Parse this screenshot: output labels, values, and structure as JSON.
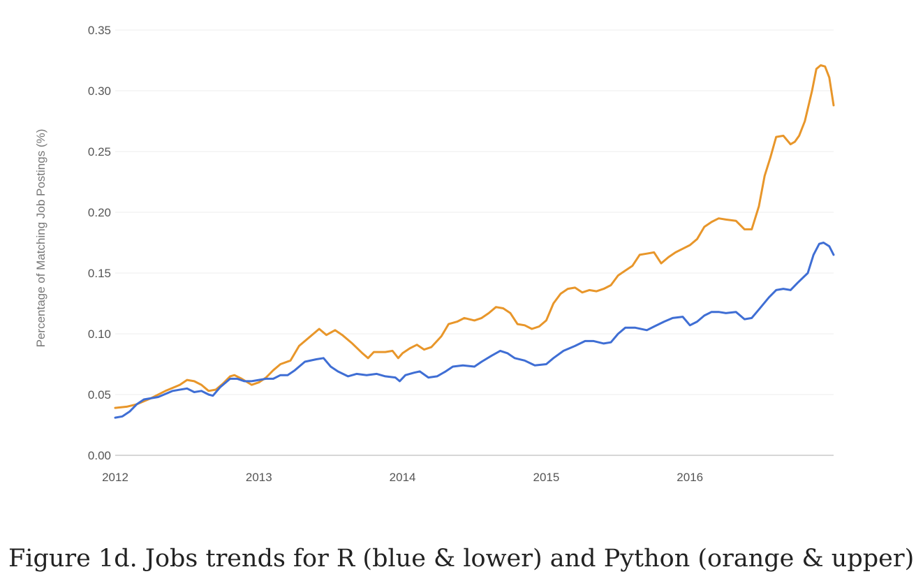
{
  "caption": "Figure 1d. Jobs trends for R (blue & lower) and Python (orange & upper).",
  "chart_data": {
    "type": "line",
    "title": "",
    "xlabel": "",
    "ylabel": "Percentage of Matching Job Postings (%)",
    "xlim": [
      2012.0,
      2017.0
    ],
    "ylim": [
      0,
      0.35
    ],
    "x_ticks": [
      {
        "value": 2012,
        "label": "2012"
      },
      {
        "value": 2013,
        "label": "2013"
      },
      {
        "value": 2014,
        "label": "2014"
      },
      {
        "value": 2015,
        "label": "2015"
      },
      {
        "value": 2016,
        "label": "2016"
      }
    ],
    "y_ticks": [
      {
        "value": 0.0,
        "label": "0.00"
      },
      {
        "value": 0.05,
        "label": "0.05"
      },
      {
        "value": 0.1,
        "label": "0.10"
      },
      {
        "value": 0.15,
        "label": "0.15"
      },
      {
        "value": 0.2,
        "label": "0.20"
      },
      {
        "value": 0.25,
        "label": "0.25"
      },
      {
        "value": 0.3,
        "label": "0.30"
      },
      {
        "value": 0.35,
        "label": "0.35"
      }
    ],
    "grid": true,
    "legend": "none",
    "series": [
      {
        "color": "#e8962a",
        "points": [
          [
            2012.0,
            0.039
          ],
          [
            2012.08,
            0.04
          ],
          [
            2012.15,
            0.042
          ],
          [
            2012.25,
            0.047
          ],
          [
            2012.35,
            0.053
          ],
          [
            2012.45,
            0.058
          ],
          [
            2012.5,
            0.062
          ],
          [
            2012.55,
            0.061
          ],
          [
            2012.6,
            0.058
          ],
          [
            2012.65,
            0.053
          ],
          [
            2012.7,
            0.054
          ],
          [
            2012.75,
            0.059
          ],
          [
            2012.8,
            0.065
          ],
          [
            2012.83,
            0.066
          ],
          [
            2012.88,
            0.063
          ],
          [
            2012.95,
            0.058
          ],
          [
            2013.0,
            0.06
          ],
          [
            2013.05,
            0.064
          ],
          [
            2013.1,
            0.07
          ],
          [
            2013.15,
            0.075
          ],
          [
            2013.22,
            0.078
          ],
          [
            2013.28,
            0.09
          ],
          [
            2013.35,
            0.097
          ],
          [
            2013.42,
            0.104
          ],
          [
            2013.47,
            0.099
          ],
          [
            2013.53,
            0.103
          ],
          [
            2013.58,
            0.099
          ],
          [
            2013.65,
            0.092
          ],
          [
            2013.72,
            0.084
          ],
          [
            2013.76,
            0.08
          ],
          [
            2013.8,
            0.085
          ],
          [
            2013.88,
            0.085
          ],
          [
            2013.93,
            0.086
          ],
          [
            2013.97,
            0.08
          ],
          [
            2014.0,
            0.084
          ],
          [
            2014.05,
            0.088
          ],
          [
            2014.1,
            0.091
          ],
          [
            2014.15,
            0.087
          ],
          [
            2014.2,
            0.089
          ],
          [
            2014.27,
            0.098
          ],
          [
            2014.32,
            0.108
          ],
          [
            2014.38,
            0.11
          ],
          [
            2014.43,
            0.113
          ],
          [
            2014.5,
            0.111
          ],
          [
            2014.55,
            0.113
          ],
          [
            2014.6,
            0.117
          ],
          [
            2014.65,
            0.122
          ],
          [
            2014.7,
            0.121
          ],
          [
            2014.75,
            0.117
          ],
          [
            2014.8,
            0.108
          ],
          [
            2014.85,
            0.107
          ],
          [
            2014.9,
            0.104
          ],
          [
            2014.95,
            0.106
          ],
          [
            2015.0,
            0.111
          ],
          [
            2015.05,
            0.125
          ],
          [
            2015.1,
            0.133
          ],
          [
            2015.15,
            0.137
          ],
          [
            2015.2,
            0.138
          ],
          [
            2015.25,
            0.134
          ],
          [
            2015.3,
            0.136
          ],
          [
            2015.35,
            0.135
          ],
          [
            2015.4,
            0.137
          ],
          [
            2015.45,
            0.14
          ],
          [
            2015.5,
            0.148
          ],
          [
            2015.55,
            0.152
          ],
          [
            2015.6,
            0.156
          ],
          [
            2015.65,
            0.165
          ],
          [
            2015.7,
            0.166
          ],
          [
            2015.75,
            0.167
          ],
          [
            2015.8,
            0.158
          ],
          [
            2015.85,
            0.163
          ],
          [
            2015.9,
            0.167
          ],
          [
            2015.95,
            0.17
          ],
          [
            2016.0,
            0.173
          ],
          [
            2016.05,
            0.178
          ],
          [
            2016.1,
            0.188
          ],
          [
            2016.15,
            0.192
          ],
          [
            2016.2,
            0.195
          ],
          [
            2016.25,
            0.194
          ],
          [
            2016.32,
            0.193
          ],
          [
            2016.38,
            0.186
          ],
          [
            2016.43,
            0.186
          ],
          [
            2016.48,
            0.205
          ],
          [
            2016.52,
            0.23
          ],
          [
            2016.56,
            0.245
          ],
          [
            2016.6,
            0.262
          ],
          [
            2016.65,
            0.263
          ],
          [
            2016.7,
            0.256
          ],
          [
            2016.73,
            0.258
          ],
          [
            2016.76,
            0.263
          ],
          [
            2016.8,
            0.275
          ],
          [
            2016.85,
            0.3
          ],
          [
            2016.88,
            0.318
          ],
          [
            2016.91,
            0.321
          ],
          [
            2016.94,
            0.32
          ],
          [
            2016.97,
            0.311
          ],
          [
            2017.0,
            0.288
          ]
        ]
      },
      {
        "color": "#3f6ed4",
        "points": [
          [
            2012.0,
            0.031
          ],
          [
            2012.05,
            0.032
          ],
          [
            2012.1,
            0.036
          ],
          [
            2012.15,
            0.042
          ],
          [
            2012.2,
            0.046
          ],
          [
            2012.3,
            0.048
          ],
          [
            2012.4,
            0.053
          ],
          [
            2012.5,
            0.055
          ],
          [
            2012.55,
            0.052
          ],
          [
            2012.6,
            0.053
          ],
          [
            2012.65,
            0.05
          ],
          [
            2012.68,
            0.049
          ],
          [
            2012.73,
            0.056
          ],
          [
            2012.8,
            0.063
          ],
          [
            2012.85,
            0.063
          ],
          [
            2012.9,
            0.061
          ],
          [
            2012.95,
            0.061
          ],
          [
            2013.0,
            0.062
          ],
          [
            2013.05,
            0.063
          ],
          [
            2013.1,
            0.063
          ],
          [
            2013.15,
            0.066
          ],
          [
            2013.2,
            0.066
          ],
          [
            2013.25,
            0.07
          ],
          [
            2013.32,
            0.077
          ],
          [
            2013.4,
            0.079
          ],
          [
            2013.45,
            0.08
          ],
          [
            2013.5,
            0.073
          ],
          [
            2013.55,
            0.069
          ],
          [
            2013.62,
            0.065
          ],
          [
            2013.68,
            0.067
          ],
          [
            2013.75,
            0.066
          ],
          [
            2013.82,
            0.067
          ],
          [
            2013.88,
            0.065
          ],
          [
            2013.95,
            0.064
          ],
          [
            2013.98,
            0.061
          ],
          [
            2014.02,
            0.066
          ],
          [
            2014.08,
            0.068
          ],
          [
            2014.12,
            0.069
          ],
          [
            2014.18,
            0.064
          ],
          [
            2014.24,
            0.065
          ],
          [
            2014.3,
            0.069
          ],
          [
            2014.35,
            0.073
          ],
          [
            2014.42,
            0.074
          ],
          [
            2014.5,
            0.073
          ],
          [
            2014.55,
            0.077
          ],
          [
            2014.62,
            0.082
          ],
          [
            2014.68,
            0.086
          ],
          [
            2014.73,
            0.084
          ],
          [
            2014.78,
            0.08
          ],
          [
            2014.85,
            0.078
          ],
          [
            2014.92,
            0.074
          ],
          [
            2015.0,
            0.075
          ],
          [
            2015.05,
            0.08
          ],
          [
            2015.12,
            0.086
          ],
          [
            2015.2,
            0.09
          ],
          [
            2015.27,
            0.094
          ],
          [
            2015.33,
            0.094
          ],
          [
            2015.4,
            0.092
          ],
          [
            2015.45,
            0.093
          ],
          [
            2015.5,
            0.1
          ],
          [
            2015.55,
            0.105
          ],
          [
            2015.62,
            0.105
          ],
          [
            2015.7,
            0.103
          ],
          [
            2015.75,
            0.106
          ],
          [
            2015.82,
            0.11
          ],
          [
            2015.88,
            0.113
          ],
          [
            2015.95,
            0.114
          ],
          [
            2016.0,
            0.107
          ],
          [
            2016.05,
            0.11
          ],
          [
            2016.1,
            0.115
          ],
          [
            2016.15,
            0.118
          ],
          [
            2016.2,
            0.118
          ],
          [
            2016.25,
            0.117
          ],
          [
            2016.32,
            0.118
          ],
          [
            2016.38,
            0.112
          ],
          [
            2016.43,
            0.113
          ],
          [
            2016.48,
            0.12
          ],
          [
            2016.55,
            0.13
          ],
          [
            2016.6,
            0.136
          ],
          [
            2016.65,
            0.137
          ],
          [
            2016.7,
            0.136
          ],
          [
            2016.75,
            0.142
          ],
          [
            2016.82,
            0.15
          ],
          [
            2016.86,
            0.165
          ],
          [
            2016.9,
            0.174
          ],
          [
            2016.93,
            0.175
          ],
          [
            2016.97,
            0.172
          ],
          [
            2017.0,
            0.165
          ]
        ]
      }
    ]
  }
}
